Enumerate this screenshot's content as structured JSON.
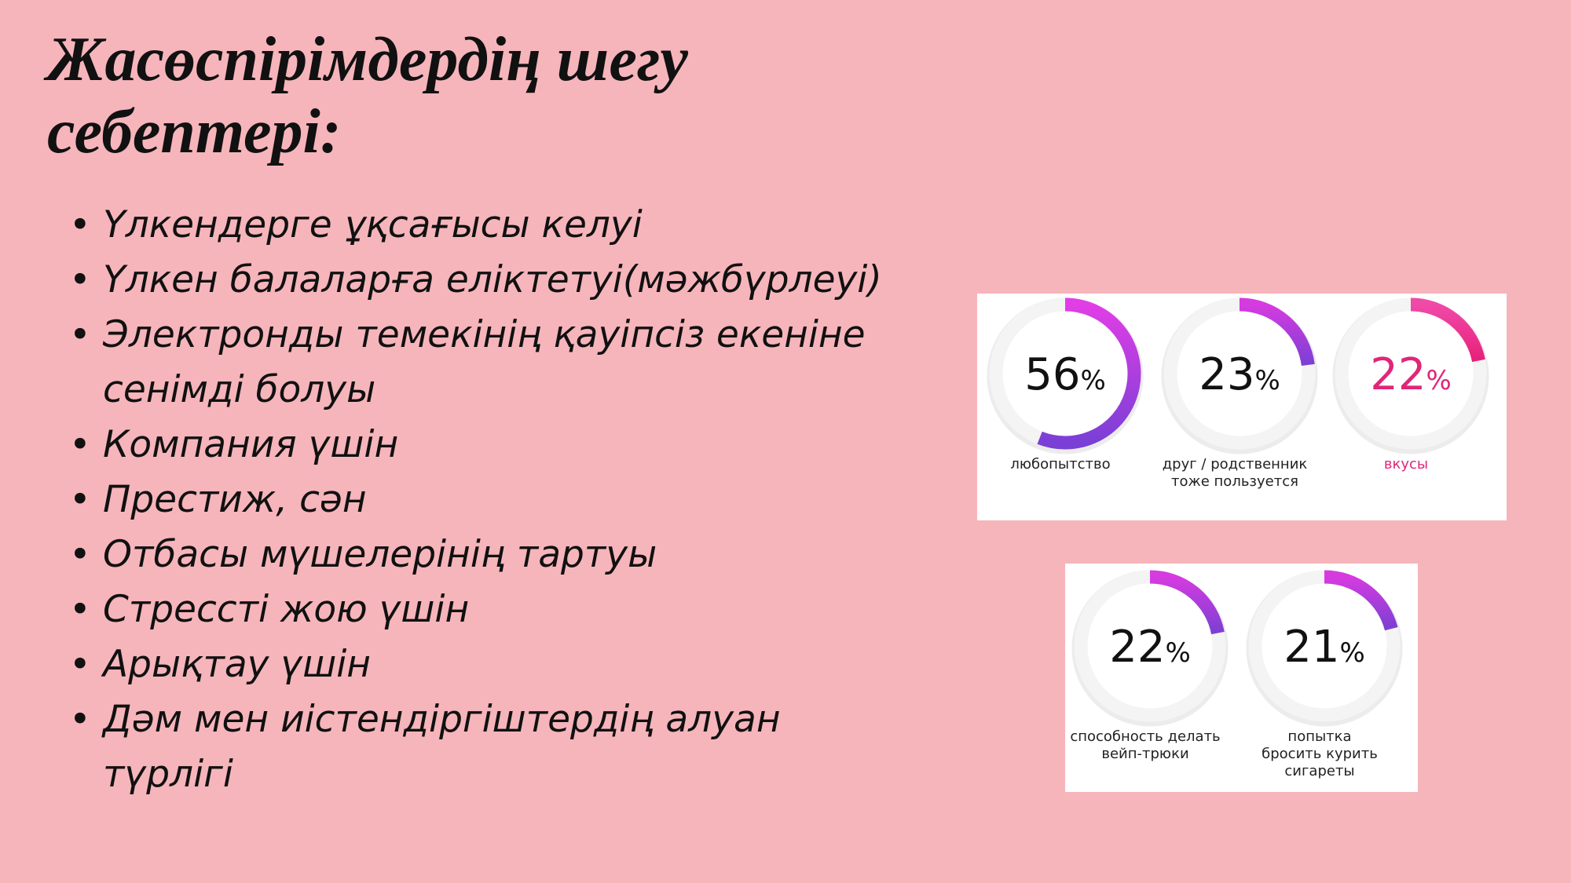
{
  "title": "Жасөспірімдердің шегу себептері:",
  "bullets": [
    "Үлкендерге ұқсағысы келуі",
    "Үлкен балаларға еліктетуі(мәжбүрлеуі)",
    "Электронды темекінің қауіпсіз екеніне сенімді болуы",
    "Компания үшін",
    "Престиж, сән",
    "Отбасы мүшелерінің тартуы",
    "Стрессті жою үшін",
    "Арықтау үшін",
    "Дәм мен иістендіргіштердің алуан түрлігі"
  ],
  "chart_data": [
    {
      "type": "donut",
      "label": [
        "любопытство"
      ],
      "values": [
        56
      ],
      "unit": "%",
      "colors": [
        "#e13ee6",
        "#7a3fd6"
      ],
      "text_color": "#111111",
      "label_color": "#222222"
    },
    {
      "type": "donut",
      "label": [
        "друг / родственник",
        "тоже пользуется"
      ],
      "values": [
        23
      ],
      "unit": "%",
      "colors": [
        "#d63be0",
        "#7b3fd4"
      ],
      "text_color": "#111111",
      "label_color": "#222222"
    },
    {
      "type": "donut",
      "label": [
        "вкусы"
      ],
      "values": [
        22
      ],
      "unit": "%",
      "colors": [
        "#f04aa8",
        "#e8207a"
      ],
      "text_color": "#e0267a",
      "label_color": "#e0267a"
    },
    {
      "type": "donut",
      "label": [
        "способность делать",
        "вейп-трюки"
      ],
      "values": [
        22
      ],
      "unit": "%",
      "colors": [
        "#d63be0",
        "#7b3fd4"
      ],
      "text_color": "#111111",
      "label_color": "#222222"
    },
    {
      "type": "donut",
      "label": [
        "попытка",
        "бросить курить",
        "сигареты"
      ],
      "values": [
        21
      ],
      "unit": "%",
      "colors": [
        "#d63be0",
        "#7b3fd4"
      ],
      "text_color": "#111111",
      "label_color": "#222222"
    }
  ]
}
